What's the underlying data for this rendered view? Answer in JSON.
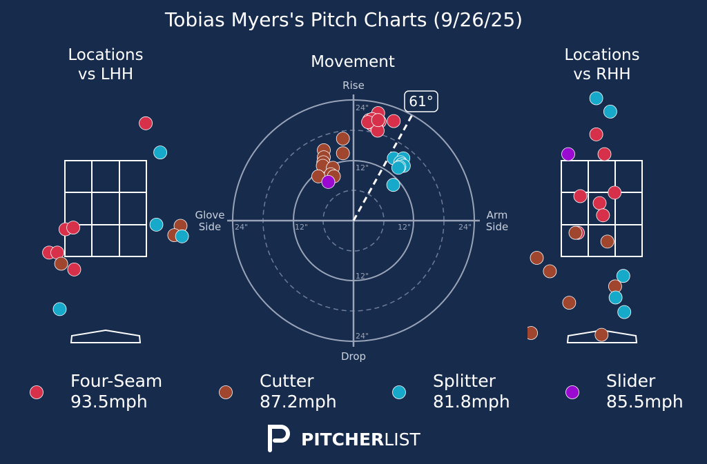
{
  "title": "Tobias Myers's Pitch Charts (9/26/25)",
  "colors": {
    "background": "#172b4d",
    "text": "#ffffff",
    "muted": "#c9d1dd",
    "four_seam": "#d7304a",
    "cutter": "#a0452e",
    "splitter": "#17a9c9",
    "slider": "#9b0ad1"
  },
  "panels": {
    "lhh_title_line1": "Locations",
    "lhh_title_line2": "vs LHH",
    "movement_title": "Movement",
    "rhh_title_line1": "Locations",
    "rhh_title_line2": "vs RHH"
  },
  "movement_axes": {
    "top": "Rise",
    "bottom": "Drop",
    "left_line1": "Glove",
    "left_line2": "Side",
    "right_line1": "Arm",
    "right_line2": "Side",
    "tick_24_top": "24\"",
    "tick_12_top": "12\"",
    "tick_12_bottom": "12\"",
    "tick_24_bottom": "24\"",
    "tick_24_left": "24\"",
    "tick_12_left": "12\"",
    "tick_12_right": "12\"",
    "tick_24_right": "24\"",
    "arm_angle_label": "61°",
    "arm_angle_deg": 61
  },
  "legend": [
    {
      "name": "Four-Seam",
      "velo": "93.5mph",
      "color": "#d7304a"
    },
    {
      "name": "Cutter",
      "velo": "87.2mph",
      "color": "#a0452e"
    },
    {
      "name": "Splitter",
      "velo": "81.8mph",
      "color": "#17a9c9"
    },
    {
      "name": "Slider",
      "velo": "85.5mph",
      "color": "#9b0ad1"
    }
  ],
  "brand": {
    "bold": "PITCHER",
    "light": "LIST"
  },
  "chart_data": [
    {
      "type": "scatter",
      "title": "Locations vs LHH",
      "xlabel": "",
      "ylabel": "",
      "series": [
        {
          "name": "Four-Seam",
          "points": [
            [
              0.83,
              3.86
            ],
            [
              -0.83,
              2.04
            ],
            [
              -0.67,
              2.07
            ],
            [
              -1.17,
              1.64
            ],
            [
              -1.0,
              1.64
            ],
            [
              -0.65,
              1.35
            ]
          ]
        },
        {
          "name": "Cutter",
          "points": [
            [
              1.55,
              2.1
            ],
            [
              1.42,
              1.94
            ],
            [
              -0.92,
              1.45
            ]
          ]
        },
        {
          "name": "Splitter",
          "points": [
            [
              1.13,
              3.36
            ],
            [
              1.05,
              2.12
            ],
            [
              1.58,
              1.92
            ],
            [
              -0.95,
              0.67
            ]
          ]
        }
      ]
    },
    {
      "type": "scatter",
      "title": "Movement",
      "xlabel": "",
      "ylabel": "",
      "xlim": [
        -24,
        24
      ],
      "ylim": [
        -24,
        24
      ],
      "series": [
        {
          "name": "Four-Seam",
          "points": [
            [
              4.9,
              21.4
            ],
            [
              3.1,
              20.0
            ],
            [
              3.7,
              20.2
            ],
            [
              5.2,
              19.7
            ],
            [
              3.7,
              19.1
            ],
            [
              4.5,
              18.9
            ],
            [
              4.8,
              17.9
            ],
            [
              2.9,
              19.6
            ],
            [
              4.9,
              20.0
            ],
            [
              8.0,
              19.8
            ]
          ]
        },
        {
          "name": "Cutter",
          "points": [
            [
              -2.1,
              16.3
            ],
            [
              -5.9,
              14.0
            ],
            [
              -2.1,
              13.4
            ],
            [
              -5.9,
              12.6
            ],
            [
              -6.0,
              11.6
            ],
            [
              -6.1,
              10.9
            ],
            [
              -4.1,
              10.5
            ],
            [
              -4.5,
              9.2
            ],
            [
              -3.9,
              8.8
            ],
            [
              -7.0,
              8.8
            ]
          ]
        },
        {
          "name": "Splitter",
          "points": [
            [
              8.0,
              12.4
            ],
            [
              9.9,
              12.4
            ],
            [
              9.3,
              11.6
            ],
            [
              9.6,
              11.2
            ],
            [
              10.0,
              10.9
            ],
            [
              9.1,
              10.7
            ],
            [
              8.9,
              10.5
            ],
            [
              7.9,
              7.1
            ]
          ]
        },
        {
          "name": "Slider",
          "points": [
            [
              -5.0,
              7.7
            ]
          ]
        }
      ]
    },
    {
      "type": "scatter",
      "title": "Locations vs RHH",
      "xlabel": "",
      "ylabel": "",
      "series": [
        {
          "name": "Four-Seam",
          "points": [
            [
              -0.12,
              3.67
            ],
            [
              0.05,
              3.33
            ],
            [
              -0.45,
              2.61
            ],
            [
              -0.05,
              2.49
            ],
            [
              0.26,
              2.67
            ],
            [
              0.02,
              2.28
            ],
            [
              -0.5,
              1.98
            ]
          ]
        },
        {
          "name": "Cutter",
          "points": [
            [
              -0.55,
              1.98
            ],
            [
              0.11,
              1.83
            ],
            [
              -1.35,
              1.55
            ],
            [
              -1.08,
              1.32
            ],
            [
              0.27,
              1.06
            ],
            [
              -0.68,
              0.78
            ],
            [
              -1.47,
              0.26
            ],
            [
              -0.01,
              0.23
            ],
            [
              -1.22,
              -0.18
            ]
          ]
        },
        {
          "name": "Splitter",
          "points": [
            [
              0.33,
              5.16
            ],
            [
              -0.12,
              4.29
            ],
            [
              0.17,
              4.06
            ],
            [
              0.44,
              1.24
            ],
            [
              0.28,
              0.87
            ],
            [
              0.46,
              0.62
            ]
          ]
        },
        {
          "name": "Slider",
          "points": [
            [
              -0.7,
              3.33
            ]
          ]
        }
      ]
    }
  ]
}
